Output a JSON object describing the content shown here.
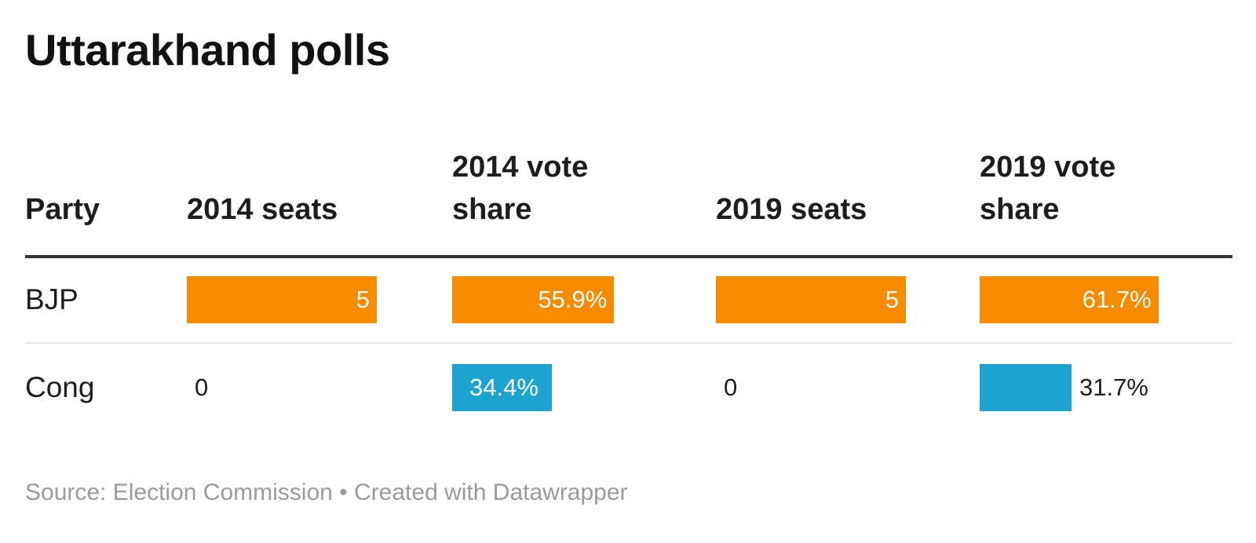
{
  "title": "Uttarakhand polls",
  "headers": [
    "Party",
    "2014 seats",
    "2014 vote share",
    "2019 seats",
    "2019 vote share"
  ],
  "footer": {
    "source": "Source: Election Commission",
    "separator": "•",
    "credit": "Created with Datawrapper"
  },
  "colors": {
    "BJP": "#f68b00",
    "Cong": "#1ca3cf"
  },
  "chart_data": {
    "type": "table",
    "title": "Uttarakhand polls",
    "columns": [
      "Party",
      "2014 seats",
      "2014 vote share",
      "2019 seats",
      "2019 vote share"
    ],
    "rows": [
      {
        "party": "BJP",
        "seats_2014": 5,
        "vote_share_2014": 55.9,
        "seats_2019": 5,
        "vote_share_2019": 61.7,
        "labels": [
          "5",
          "55.9%",
          "5",
          "61.7%"
        ]
      },
      {
        "party": "Cong",
        "seats_2014": 0,
        "vote_share_2014": 34.4,
        "seats_2019": 0,
        "vote_share_2019": 31.7,
        "labels": [
          "0",
          "34.4%",
          "0",
          "31.7%"
        ]
      }
    ]
  }
}
